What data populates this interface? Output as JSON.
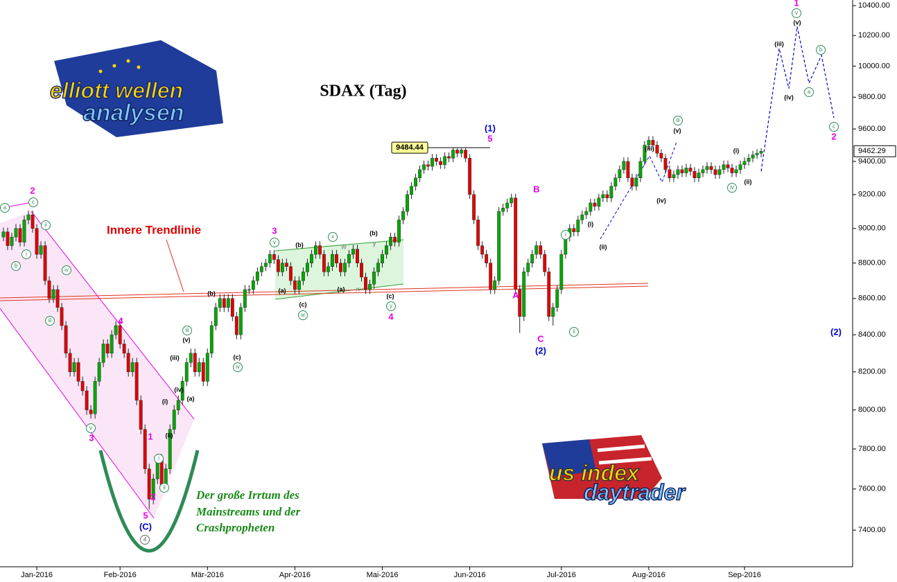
{
  "chart_data": {
    "type": "candlestick",
    "title": "SDAX (Tag)",
    "log_scale": true,
    "up_color": "#00a800",
    "down_color": "#e00000",
    "ylim": [
      7226,
      10438
    ],
    "yticks": [
      {
        "value": 7400,
        "label": "7400.00"
      },
      {
        "value": 7600,
        "label": "7600.00"
      },
      {
        "value": 7800,
        "label": "7800.00"
      },
      {
        "value": 8000,
        "label": "8000.00"
      },
      {
        "value": 8200,
        "label": "8200.00"
      },
      {
        "value": 8400,
        "label": "8400.00"
      },
      {
        "value": 8600,
        "label": "8600.00"
      },
      {
        "value": 8800,
        "label": "8800.00"
      },
      {
        "value": 9000,
        "label": "9000.00"
      },
      {
        "value": 9200,
        "label": "9200.00"
      },
      {
        "value": 9400,
        "label": "9400.00"
      },
      {
        "value": 9600,
        "label": "9600.00"
      },
      {
        "value": 9800,
        "label": "9800.00"
      },
      {
        "value": 10000,
        "label": "10000.00"
      },
      {
        "value": 10200,
        "label": "10200.00"
      },
      {
        "value": 10400,
        "label": "10400.00"
      }
    ],
    "categories": [
      null,
      null,
      null,
      null,
      null,
      null,
      null,
      null,
      "Jan-2016",
      null,
      null,
      null,
      null,
      null,
      null,
      null,
      null,
      null,
      null,
      null,
      null,
      null,
      null,
      null,
      null,
      null,
      null,
      null,
      "Feb-2016",
      null,
      null,
      null,
      null,
      null,
      null,
      null,
      null,
      null,
      null,
      null,
      null,
      null,
      null,
      null,
      null,
      null,
      null,
      null,
      null,
      "Mär-2016",
      null,
      null,
      null,
      null,
      null,
      null,
      null,
      null,
      null,
      null,
      null,
      null,
      null,
      null,
      null,
      null,
      null,
      null,
      null,
      null,
      "Apr-2016",
      null,
      null,
      null,
      null,
      null,
      null,
      null,
      null,
      null,
      null,
      null,
      null,
      null,
      null,
      null,
      null,
      null,
      null,
      null,
      null,
      "Mai-2016",
      null,
      null,
      null,
      null,
      null,
      null,
      null,
      null,
      null,
      null,
      null,
      null,
      null,
      null,
      null,
      null,
      null,
      null,
      null,
      null,
      "Jun-2016",
      null,
      null,
      null,
      null,
      null,
      null,
      null,
      null,
      null,
      null,
      null,
      null,
      null,
      null,
      null,
      null,
      null,
      null,
      null,
      null,
      null,
      "Jul-2016",
      null,
      null,
      null,
      null,
      null,
      null,
      null,
      null,
      null,
      null,
      null,
      null,
      null,
      null,
      null,
      null,
      null,
      null,
      null,
      null,
      "Aug-2016",
      null,
      null,
      null,
      null,
      null,
      null,
      null,
      null,
      null,
      null,
      null,
      null,
      null,
      null,
      null,
      null,
      null,
      null,
      null,
      null,
      null,
      null,
      "Sep-2016",
      null,
      null,
      null,
      null
    ],
    "open": [
      8950,
      8980,
      8900,
      8950,
      9000,
      8920,
      9050,
      9080,
      9000,
      8850,
      8900,
      8700,
      8600,
      8650,
      8550,
      8450,
      8300,
      8200,
      8250,
      8150,
      8100,
      8000,
      7980,
      8150,
      8250,
      8350,
      8300,
      8400,
      8450,
      8350,
      8300,
      8200,
      8250,
      8050,
      7900,
      7700,
      7550,
      7650,
      7750,
      7620,
      7700,
      7900,
      8000,
      8050,
      8150,
      8250,
      8300,
      8200,
      8250,
      8150,
      8300,
      8450,
      8550,
      8600,
      8550,
      8600,
      8500,
      8400,
      8550,
      8650,
      8650,
      8700,
      8750,
      8780,
      8800,
      8850,
      8820,
      8750,
      8800,
      8780,
      8700,
      8650,
      8700,
      8750,
      8800,
      8850,
      8900,
      8850,
      8750,
      8780,
      8850,
      8800,
      8750,
      8800,
      8850,
      8880,
      8800,
      8720,
      8650,
      8680,
      8750,
      8800,
      8850,
      8900,
      8950,
      8920,
      9050,
      9100,
      9200,
      9250,
      9300,
      9350,
      9380,
      9370,
      9420,
      9400,
      9380,
      9430,
      9420,
      9470,
      9450,
      9470,
      9420,
      9200,
      9050,
      8900,
      8850,
      8800,
      8650,
      8700,
      9100,
      9120,
      9150,
      9180,
      8650,
      8500,
      8750,
      8800,
      8850,
      8900,
      8850,
      8750,
      8500,
      8550,
      8650,
      8850,
      8950,
      9000,
      8980,
      9050,
      9080,
      9100,
      9150,
      9130,
      9180,
      9200,
      9180,
      9250,
      9300,
      9350,
      9400,
      9300,
      9250,
      9300,
      9400,
      9500,
      9530,
      9500,
      9450,
      9420,
      9350,
      9300,
      9320,
      9350,
      9330,
      9360,
      9340,
      9300,
      9330,
      9350,
      9370,
      9350,
      9320,
      9350,
      9380,
      9360,
      9330,
      9350,
      9380,
      9400,
      9420,
      9440,
      9450
    ],
    "high": [
      9005,
      9005,
      8975,
      9025,
      9025,
      9075,
      9105,
      9105,
      9025,
      8925,
      8925,
      8725,
      8675,
      8675,
      8575,
      8475,
      8325,
      8275,
      8275,
      8175,
      8125,
      8025,
      8175,
      8275,
      8375,
      8375,
      8425,
      8475,
      8475,
      8375,
      8325,
      8275,
      8275,
      8075,
      7925,
      7725,
      7675,
      7775,
      7775,
      7725,
      7925,
      8025,
      8075,
      8175,
      8275,
      8325,
      8325,
      8275,
      8275,
      8325,
      8475,
      8575,
      8625,
      8625,
      8625,
      8625,
      8525,
      8575,
      8675,
      8675,
      8725,
      8775,
      8805,
      8825,
      8875,
      8875,
      8845,
      8825,
      8825,
      8805,
      8725,
      8725,
      8775,
      8825,
      8875,
      8925,
      8925,
      8875,
      8805,
      8875,
      8875,
      8825,
      8825,
      8875,
      8905,
      8905,
      8825,
      8745,
      8705,
      8775,
      8825,
      8875,
      8925,
      8975,
      8975,
      9075,
      9125,
      9225,
      9275,
      9325,
      9375,
      9405,
      9405,
      9445,
      9445,
      9425,
      9455,
      9455,
      9484.44,
      9480,
      9480,
      9480,
      9445,
      9225,
      9075,
      8925,
      8875,
      8825,
      8725,
      9125,
      9145,
      9175,
      9205,
      9205,
      8675,
      8775,
      8825,
      8875,
      8925,
      8925,
      8875,
      8775,
      8575,
      8675,
      8875,
      8975,
      9025,
      9025,
      9075,
      9105,
      9125,
      9175,
      9175,
      9205,
      9225,
      9225,
      9275,
      9325,
      9375,
      9425,
      9425,
      9325,
      9325,
      9425,
      9525,
      9555,
      9555,
      9525,
      9475,
      9445,
      9375,
      9345,
      9375,
      9375,
      9385,
      9385,
      9365,
      9355,
      9375,
      9395,
      9395,
      9375,
      9375,
      9405,
      9405,
      9385,
      9375,
      9405,
      9425,
      9445,
      9465,
      9475,
      9480
    ],
    "low": [
      8925,
      8875,
      8875,
      8925,
      8895,
      8895,
      9025,
      8975,
      8825,
      8825,
      8675,
      8575,
      8575,
      8525,
      8425,
      8275,
      8175,
      8175,
      8125,
      8075,
      7975,
      7955,
      7955,
      8125,
      8225,
      8275,
      8275,
      8375,
      8325,
      8275,
      8175,
      8175,
      8025,
      7875,
      7675,
      7500,
      7525,
      7625,
      7595,
      7595,
      7675,
      7875,
      7975,
      8025,
      8125,
      8225,
      8175,
      8175,
      8125,
      8125,
      8275,
      8425,
      8525,
      8525,
      8525,
      8475,
      8375,
      8375,
      8525,
      8625,
      8625,
      8675,
      8725,
      8755,
      8775,
      8795,
      8725,
      8725,
      8755,
      8675,
      8625,
      8625,
      8675,
      8725,
      8775,
      8825,
      8825,
      8725,
      8725,
      8755,
      8775,
      8725,
      8725,
      8775,
      8825,
      8775,
      8695,
      8625,
      8625,
      8655,
      8725,
      8775,
      8825,
      8875,
      8895,
      8895,
      9025,
      9075,
      9175,
      9225,
      9275,
      9325,
      9345,
      9345,
      9375,
      9355,
      9355,
      9395,
      9395,
      9425,
      9425,
      9395,
      9175,
      9025,
      8875,
      8825,
      8775,
      8625,
      8625,
      8675,
      9075,
      9095,
      9125,
      8625,
      8410,
      8475,
      8725,
      8775,
      8825,
      8825,
      8725,
      8475,
      8450,
      8525,
      8625,
      8825,
      8925,
      8955,
      8955,
      9025,
      9055,
      9075,
      9105,
      9105,
      9155,
      9155,
      9155,
      9225,
      9275,
      9325,
      9275,
      9225,
      9225,
      9275,
      9375,
      9475,
      9475,
      9425,
      9395,
      9325,
      9275,
      9275,
      9295,
      9305,
      9305,
      9315,
      9275,
      9275,
      9305,
      9325,
      9325,
      9295,
      9295,
      9325,
      9335,
      9305,
      9305,
      9325,
      9355,
      9375,
      9395,
      9415,
      9425
    ],
    "close": [
      8980,
      8900,
      8950,
      9000,
      8920,
      9050,
      9080,
      9000,
      8850,
      8900,
      8700,
      8600,
      8650,
      8550,
      8450,
      8300,
      8200,
      8250,
      8150,
      8100,
      8000,
      7980,
      8150,
      8250,
      8350,
      8300,
      8400,
      8450,
      8350,
      8300,
      8200,
      8250,
      8050,
      7900,
      7700,
      7550,
      7650,
      7750,
      7620,
      7700,
      7900,
      8000,
      8050,
      8150,
      8250,
      8300,
      8200,
      8250,
      8150,
      8300,
      8450,
      8550,
      8600,
      8550,
      8600,
      8500,
      8400,
      8550,
      8650,
      8650,
      8700,
      8750,
      8780,
      8800,
      8850,
      8820,
      8750,
      8800,
      8780,
      8700,
      8650,
      8700,
      8750,
      8800,
      8850,
      8900,
      8850,
      8750,
      8780,
      8850,
      8800,
      8750,
      8800,
      8850,
      8880,
      8800,
      8720,
      8650,
      8680,
      8750,
      8800,
      8850,
      8900,
      8950,
      8920,
      9050,
      9100,
      9200,
      9250,
      9300,
      9350,
      9380,
      9370,
      9420,
      9400,
      9380,
      9430,
      9420,
      9470,
      9450,
      9470,
      9420,
      9200,
      9050,
      8900,
      8850,
      8800,
      8650,
      8700,
      9100,
      9120,
      9150,
      9180,
      8650,
      8500,
      8750,
      8800,
      8850,
      8900,
      8850,
      8750,
      8500,
      8550,
      8650,
      8850,
      8950,
      9000,
      8980,
      9050,
      9080,
      9100,
      9150,
      9130,
      9180,
      9200,
      9180,
      9250,
      9300,
      9350,
      9400,
      9300,
      9250,
      9300,
      9400,
      9500,
      9530,
      9500,
      9450,
      9420,
      9350,
      9300,
      9320,
      9350,
      9330,
      9360,
      9340,
      9300,
      9330,
      9350,
      9370,
      9350,
      9320,
      9350,
      9380,
      9360,
      9330,
      9350,
      9380,
      9400,
      9420,
      9440,
      9450,
      9462.29
    ],
    "peak_label": 9484.44,
    "forecast": {
      "color": "#0000cc",
      "values": [
        9340,
        10115,
        9855,
        10260,
        9890,
        10070,
        9670
      ]
    },
    "labels": {
      "magenta": [
        "2",
        "3",
        "4",
        "5",
        "1",
        "2",
        "3",
        "4",
        "5",
        "A",
        "B",
        "C",
        "1",
        "2"
      ],
      "blue": [
        "(C)",
        "(1)",
        "(2)",
        "(2)"
      ],
      "black": [
        "(i)",
        "(ii)",
        "(iii)",
        "(iv)",
        "(v)",
        "(a)",
        "(b)",
        "(c)",
        "(a)",
        "(b)",
        "(c)",
        "(a)",
        "(b)",
        "(c)",
        "(i)",
        "(ii)",
        "(iii)",
        "(iv)",
        "(v)",
        "(i)",
        "(ii)",
        "(iii)",
        "(iv)",
        "(v)"
      ],
      "circled": [
        "a",
        "c",
        "ii",
        "b",
        "i",
        "iv",
        "iii",
        "v",
        "i",
        "ii",
        "iii",
        "iv",
        "v",
        "w",
        "x",
        "y",
        "i",
        "ii",
        "iii",
        "iv",
        "v",
        "a",
        "b",
        "c"
      ],
      "circled_gray": [
        "4"
      ],
      "gray": [
        "w",
        "y",
        "x"
      ]
    },
    "trendline_label": "Innere Trendlinie",
    "comment": [
      "Der große Irrtum des",
      "Mainstreams und der",
      "Crashpropheten"
    ]
  },
  "logos": {
    "left": [
      "elliott wellen",
      "analysen"
    ],
    "right": [
      "us index",
      "daytrader"
    ]
  }
}
